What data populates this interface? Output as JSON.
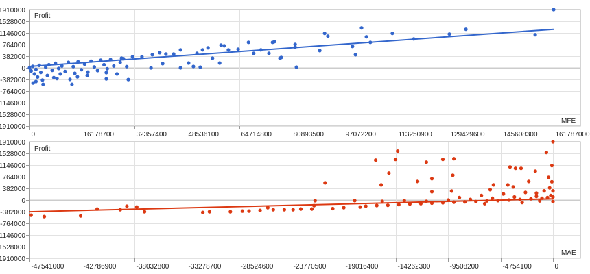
{
  "chart_data": [
    {
      "type": "scatter",
      "ylabel": "Profit",
      "xlabel": "MFE",
      "color": "#3366cc",
      "xlim": [
        0,
        161787000
      ],
      "ylim": [
        -1910000,
        1910000
      ],
      "grid": true,
      "x_ticks": [
        "0",
        "16178700",
        "32357400",
        "48536100",
        "64714800",
        "80893500",
        "97072200",
        "113250900",
        "129429600",
        "145608300",
        "161787000"
      ],
      "y_ticks": [
        "1910000",
        "1528000",
        "1146000",
        "764000",
        "382000",
        "0",
        "-382000",
        "-764000",
        "-1146000",
        "-1528000",
        "-1910000"
      ],
      "trendline": [
        [
          0,
          45000
        ],
        [
          161787000,
          1265000
        ]
      ],
      "points": [
        [
          75600000,
          859000
        ],
        [
          77300000,
          316000
        ],
        [
          77700000,
          339000
        ],
        [
          82000000,
          769000
        ],
        [
          82000000,
          678000
        ],
        [
          82400000,
          23000
        ],
        [
          89600000,
          565000
        ],
        [
          91100000,
          1130000
        ],
        [
          92100000,
          1040000
        ],
        [
          99700000,
          701000
        ],
        [
          100600000,
          429000
        ],
        [
          102500000,
          1311000
        ],
        [
          104000000,
          1017000
        ],
        [
          105200000,
          836000
        ],
        [
          112000000,
          1130000
        ],
        [
          118600000,
          949000
        ],
        [
          129600000,
          1108000
        ],
        [
          134700000,
          1266000
        ],
        [
          156100000,
          1085000
        ],
        [
          161787000,
          1910000
        ],
        [
          67600000,
          836000
        ],
        [
          75000000,
          836000
        ],
        [
          71400000,
          588000
        ],
        [
          73900000,
          475000
        ],
        [
          69200000,
          475000
        ],
        [
          64400000,
          610000
        ],
        [
          61400000,
          588000
        ],
        [
          59100000,
          746000
        ],
        [
          60100000,
          723000
        ],
        [
          55100000,
          656000
        ],
        [
          53400000,
          588000
        ],
        [
          58700000,
          158000
        ],
        [
          56500000,
          316000
        ],
        [
          51700000,
          475000
        ],
        [
          49100000,
          158000
        ],
        [
          52700000,
          23000
        ],
        [
          50600000,
          45000
        ],
        [
          46600000,
          588000
        ],
        [
          46600000,
          0
        ],
        [
          44500000,
          452000
        ],
        [
          42100000,
          452000
        ],
        [
          40200000,
          497000
        ],
        [
          37900000,
          429000
        ],
        [
          37500000,
          0
        ],
        [
          41100000,
          136000
        ],
        [
          34700000,
          362000
        ],
        [
          31800000,
          362000
        ],
        [
          28400000,
          316000
        ],
        [
          30500000,
          -384000
        ],
        [
          23700000,
          -158000
        ],
        [
          23700000,
          -362000
        ],
        [
          17800000,
          -249000
        ],
        [
          13100000,
          -542000
        ],
        [
          4200000,
          -542000
        ],
        [
          1100000,
          -497000
        ],
        [
          14800000,
          -294000
        ],
        [
          500000,
          -100000
        ],
        [
          1000000,
          50000
        ],
        [
          1500000,
          -200000
        ],
        [
          2000000,
          -50000
        ],
        [
          2500000,
          -300000
        ],
        [
          3000000,
          80000
        ],
        [
          3500000,
          -150000
        ],
        [
          4000000,
          -400000
        ],
        [
          5000000,
          20000
        ],
        [
          5500000,
          -250000
        ],
        [
          6000000,
          100000
        ],
        [
          7000000,
          -80000
        ],
        [
          7500000,
          -320000
        ],
        [
          8000000,
          150000
        ],
        [
          9000000,
          -20000
        ],
        [
          9500000,
          -200000
        ],
        [
          10000000,
          60000
        ],
        [
          11000000,
          -120000
        ],
        [
          12000000,
          180000
        ],
        [
          12500000,
          -380000
        ],
        [
          13500000,
          40000
        ],
        [
          14000000,
          -180000
        ],
        [
          15000000,
          200000
        ],
        [
          16000000,
          -60000
        ],
        [
          17000000,
          120000
        ],
        [
          18000000,
          -140000
        ],
        [
          19000000,
          220000
        ],
        [
          20000000,
          30000
        ],
        [
          21000000,
          -90000
        ],
        [
          22000000,
          250000
        ],
        [
          23000000,
          100000
        ],
        [
          24000000,
          -30000
        ],
        [
          25000000,
          270000
        ],
        [
          26000000,
          60000
        ],
        [
          27000000,
          -200000
        ],
        [
          28000000,
          180000
        ],
        [
          29000000,
          300000
        ],
        [
          30000000,
          40000
        ],
        [
          2000000,
          -450000
        ],
        [
          8500000,
          -350000
        ],
        [
          0,
          0
        ]
      ]
    },
    {
      "type": "scatter",
      "ylabel": "Profit",
      "xlabel": "MAE",
      "color": "#dc3912",
      "xlim": [
        -47541000,
        0
      ],
      "ylim": [
        -1910000,
        1910000
      ],
      "grid": true,
      "x_ticks": [
        "-47541000",
        "-42786900",
        "-38032800",
        "-33278700",
        "-28524600",
        "-23770500",
        "-19016400",
        "-14262300",
        "-9508200",
        "-4754100",
        "0"
      ],
      "y_ticks": [
        "1910000",
        "1528000",
        "1146000",
        "764000",
        "382000",
        "0",
        "-382000",
        "-764000",
        "-1146000",
        "-1528000",
        "-1910000"
      ],
      "trendline": [
        [
          -47541000,
          -384000
        ],
        [
          0,
          40000
        ]
      ],
      "points": [
        [
          -47400000,
          -497000
        ],
        [
          -46200000,
          -542000
        ],
        [
          -42900000,
          -520000
        ],
        [
          -41400000,
          -294000
        ],
        [
          -39300000,
          -316000
        ],
        [
          -38700000,
          -203000
        ],
        [
          -37800000,
          -226000
        ],
        [
          -37100000,
          -384000
        ],
        [
          -31800000,
          -407000
        ],
        [
          -31200000,
          -384000
        ],
        [
          -29300000,
          -384000
        ],
        [
          -28200000,
          -362000
        ],
        [
          -27600000,
          -362000
        ],
        [
          -26600000,
          -339000
        ],
        [
          -25900000,
          -249000
        ],
        [
          -25400000,
          -316000
        ],
        [
          -24400000,
          -316000
        ],
        [
          -23600000,
          -316000
        ],
        [
          -22900000,
          -294000
        ],
        [
          -21900000,
          -294000
        ],
        [
          -21700000,
          -181000
        ],
        [
          -21600000,
          -23000
        ],
        [
          -20700000,
          565000
        ],
        [
          -16100000,
          1311000
        ],
        [
          -14900000,
          882000
        ],
        [
          -15600000,
          497000
        ],
        [
          -14300000,
          1334000
        ],
        [
          -14100000,
          1605000
        ],
        [
          -12300000,
          610000
        ],
        [
          -11500000,
          1243000
        ],
        [
          -11000000,
          271000
        ],
        [
          -10000000,
          1334000
        ],
        [
          -11000000,
          701000
        ],
        [
          -9100000,
          814000
        ],
        [
          -9200000,
          294000
        ],
        [
          -9000000,
          1356000
        ],
        [
          -5700000,
          339000
        ],
        [
          -3900000,
          1085000
        ],
        [
          -3400000,
          1040000
        ],
        [
          -2900000,
          1040000
        ],
        [
          -3600000,
          429000
        ],
        [
          -1500000,
          226000
        ],
        [
          -100000,
          1130000
        ],
        [
          -4100000,
          497000
        ],
        [
          -400000,
          746000
        ],
        [
          -600000,
          1560000
        ],
        [
          0,
          1910000
        ],
        [
          -1600000,
          949000
        ],
        [
          -5400000,
          497000
        ],
        [
          -2200000,
          610000
        ],
        [
          -20000000,
          -280000
        ],
        [
          -19000000,
          -250000
        ],
        [
          -18000000,
          -20000
        ],
        [
          -17500000,
          -230000
        ],
        [
          -17000000,
          -200000
        ],
        [
          -16000000,
          -180000
        ],
        [
          -15500000,
          -40000
        ],
        [
          -15000000,
          -170000
        ],
        [
          -14000000,
          -150000
        ],
        [
          -13500000,
          -20000
        ],
        [
          -13000000,
          -130000
        ],
        [
          -12000000,
          -120000
        ],
        [
          -11500000,
          -40000
        ],
        [
          -11000000,
          -100000
        ],
        [
          -10000000,
          -90000
        ],
        [
          -9500000,
          0
        ],
        [
          -9000000,
          -70000
        ],
        [
          -8500000,
          80000
        ],
        [
          -8000000,
          -60000
        ],
        [
          -7500000,
          20000
        ],
        [
          -7000000,
          -50000
        ],
        [
          -6500000,
          150000
        ],
        [
          -6000000,
          -30000
        ],
        [
          -5500000,
          60000
        ],
        [
          -5000000,
          -20000
        ],
        [
          -4500000,
          200000
        ],
        [
          -4000000,
          0
        ],
        [
          -3500000,
          100000
        ],
        [
          -3000000,
          20000
        ],
        [
          -2500000,
          250000
        ],
        [
          -2000000,
          40000
        ],
        [
          -1500000,
          120000
        ],
        [
          -1000000,
          60000
        ],
        [
          -800000,
          300000
        ],
        [
          -500000,
          80000
        ],
        [
          -300000,
          400000
        ],
        [
          -200000,
          150000
        ],
        [
          -100000,
          600000
        ],
        [
          0,
          100000
        ],
        [
          0,
          300000
        ],
        [
          0,
          -50000
        ],
        [
          -1200000,
          -30000
        ],
        [
          -2800000,
          -80000
        ],
        [
          -6200000,
          -120000
        ]
      ]
    }
  ]
}
